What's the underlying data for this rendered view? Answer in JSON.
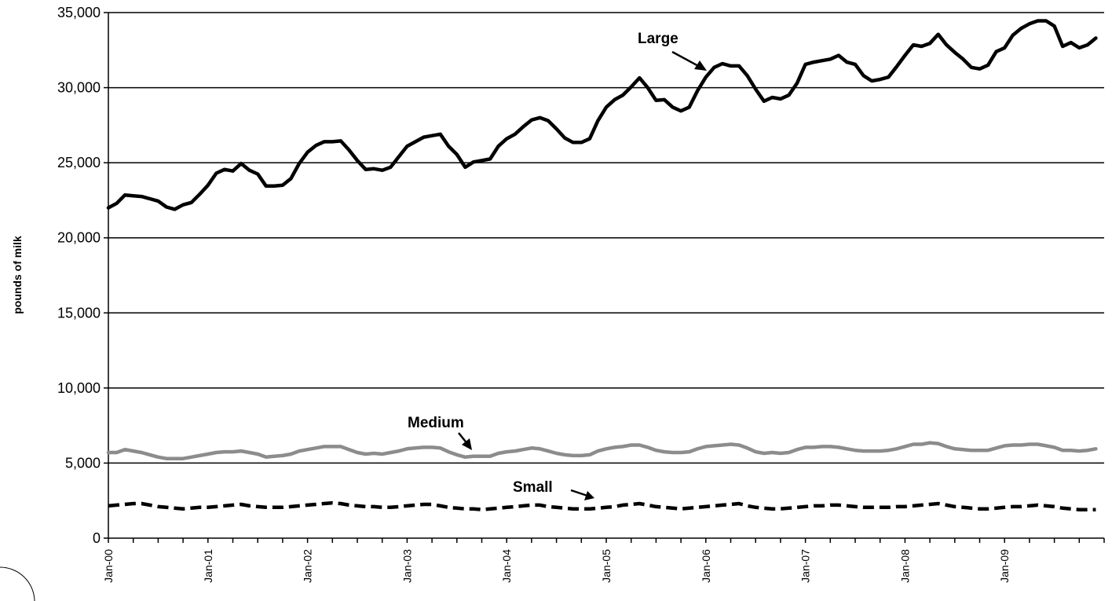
{
  "chart_data": {
    "type": "line",
    "title": "",
    "xlabel": "",
    "ylabel": "pounds of milk",
    "ylim": [
      0,
      35000
    ],
    "y_ticks": [
      0,
      5000,
      10000,
      15000,
      20000,
      25000,
      30000,
      35000
    ],
    "y_tick_labels": [
      "0",
      "5,000",
      "10,000",
      "15,000",
      "20,000",
      "25,000",
      "30,000",
      "35,000"
    ],
    "x_tick_labels": [
      "Jan-00",
      "Jan-01",
      "Jan-02",
      "Jan-03",
      "Jan-04",
      "Jan-05",
      "Jan-06",
      "Jan-07",
      "Jan-08",
      "Jan-09"
    ],
    "x_start": "Jan-00",
    "x_end": "Dec-09",
    "grid": "horizontal",
    "legend": "none",
    "colors": {
      "large": "#000000",
      "medium": "#8c8c8c",
      "small": "#000000"
    },
    "annotations": [
      {
        "text": "Large",
        "series": "Large"
      },
      {
        "text": "Medium",
        "series": "Medium"
      },
      {
        "text": "Small",
        "series": "Small"
      }
    ],
    "series": [
      {
        "name": "Large",
        "style": "solid-black",
        "values": [
          22000,
          22300,
          22850,
          22800,
          22750,
          22600,
          22450,
          22050,
          21900,
          22200,
          22350,
          22900,
          23500,
          24300,
          24550,
          24450,
          24950,
          24500,
          24250,
          23450,
          23450,
          23500,
          23950,
          24950,
          25700,
          26150,
          26400,
          26400,
          26450,
          25850,
          25150,
          24550,
          24600,
          24500,
          24700,
          25400,
          26100,
          26400,
          26700,
          26800,
          26900,
          26100,
          25550,
          24700,
          25050,
          25150,
          25250,
          26100,
          26600,
          26900,
          27400,
          27850,
          28000,
          27800,
          27250,
          26650,
          26350,
          26350,
          26600,
          27800,
          28700,
          29200,
          29500,
          30050,
          30650,
          30000,
          29150,
          29200,
          28700,
          28450,
          28700,
          29800,
          30700,
          31350,
          31600,
          31450,
          31450,
          30800,
          29900,
          29100,
          29350,
          29250,
          29500,
          30300,
          31550,
          31700,
          31800,
          31900,
          32150,
          31700,
          31550,
          30800,
          30450,
          30550,
          30700,
          31400,
          32150,
          32850,
          32750,
          32950,
          33550,
          32850,
          32350,
          31900,
          31350,
          31250,
          31500,
          32400,
          32650,
          33500,
          33950,
          34250,
          34450,
          34450,
          34100,
          32750,
          33000,
          32650,
          32850,
          33300
        ]
      },
      {
        "name": "Medium",
        "style": "solid-gray",
        "values": [
          5700,
          5700,
          5900,
          5800,
          5700,
          5550,
          5400,
          5300,
          5300,
          5300,
          5400,
          5500,
          5600,
          5700,
          5750,
          5750,
          5800,
          5700,
          5600,
          5400,
          5450,
          5500,
          5600,
          5800,
          5900,
          6000,
          6100,
          6100,
          6100,
          5900,
          5700,
          5600,
          5650,
          5600,
          5700,
          5800,
          5950,
          6000,
          6050,
          6050,
          6000,
          5750,
          5550,
          5400,
          5450,
          5450,
          5450,
          5650,
          5750,
          5800,
          5900,
          6000,
          5950,
          5800,
          5650,
          5550,
          5500,
          5500,
          5550,
          5800,
          5950,
          6050,
          6100,
          6200,
          6200,
          6050,
          5850,
          5750,
          5700,
          5700,
          5750,
          5950,
          6100,
          6150,
          6200,
          6250,
          6200,
          6000,
          5750,
          5650,
          5700,
          5650,
          5700,
          5900,
          6050,
          6050,
          6100,
          6100,
          6050,
          5950,
          5850,
          5800,
          5800,
          5800,
          5850,
          5950,
          6100,
          6250,
          6250,
          6350,
          6300,
          6100,
          5950,
          5900,
          5850,
          5850,
          5850,
          6000,
          6150,
          6200,
          6200,
          6250,
          6250,
          6150,
          6050,
          5850,
          5850,
          5800,
          5850,
          5950
        ]
      },
      {
        "name": "Small",
        "style": "dashed-black",
        "values": [
          2150,
          2200,
          2250,
          2300,
          2300,
          2200,
          2100,
          2050,
          2000,
          1950,
          2000,
          2050,
          2050,
          2100,
          2150,
          2200,
          2250,
          2150,
          2100,
          2050,
          2050,
          2050,
          2100,
          2150,
          2200,
          2250,
          2300,
          2350,
          2300,
          2200,
          2150,
          2100,
          2100,
          2050,
          2050,
          2100,
          2150,
          2200,
          2250,
          2250,
          2150,
          2050,
          2000,
          1950,
          1950,
          1900,
          1950,
          2000,
          2050,
          2100,
          2150,
          2200,
          2200,
          2100,
          2050,
          2000,
          1950,
          1950,
          1950,
          2000,
          2050,
          2100,
          2200,
          2250,
          2300,
          2200,
          2100,
          2050,
          2000,
          1950,
          2000,
          2050,
          2100,
          2150,
          2200,
          2250,
          2300,
          2150,
          2050,
          2000,
          1950,
          1950,
          2000,
          2050,
          2100,
          2150,
          2150,
          2200,
          2200,
          2150,
          2100,
          2050,
          2050,
          2050,
          2050,
          2100,
          2100,
          2150,
          2200,
          2250,
          2300,
          2200,
          2100,
          2050,
          2000,
          1950,
          1950,
          2000,
          2050,
          2100,
          2100,
          2150,
          2200,
          2150,
          2100,
          2000,
          1950,
          1900,
          1900,
          1900
        ]
      }
    ]
  }
}
